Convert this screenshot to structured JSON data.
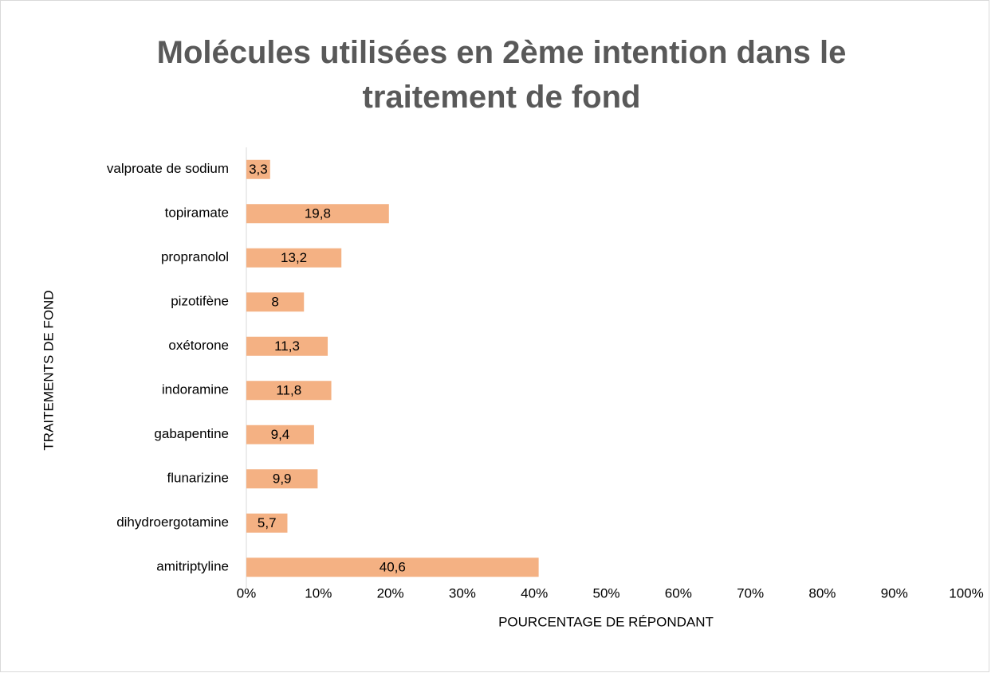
{
  "chart_data": {
    "type": "bar",
    "orientation": "horizontal",
    "title": "Molécules utilisées en 2ème intention dans le traitement de fond",
    "xlabel": "POURCENTAGE DE RÉPONDANT",
    "ylabel": "TRAITEMENTS DE FOND",
    "categories": [
      "valproate de sodium",
      "topiramate",
      "propranolol",
      "pizotifène",
      "oxétorone",
      "indoramine",
      "gabapentine",
      "flunarizine",
      "dihydroergotamine",
      "amitriptyline"
    ],
    "values": [
      3.3,
      19.8,
      13.2,
      8,
      11.3,
      11.8,
      9.4,
      9.9,
      5.7,
      40.6
    ],
    "value_labels": [
      "3,3",
      "19,8",
      "13,2",
      "8",
      "11,3",
      "11,8",
      "9,4",
      "9,9",
      "5,7",
      "40,6"
    ],
    "color": "#f4b183",
    "xlim": [
      0,
      100
    ],
    "xticks": [
      {
        "value": 0,
        "label": "0%"
      },
      {
        "value": 10,
        "label": "10%"
      },
      {
        "value": 20,
        "label": "20%"
      },
      {
        "value": 30,
        "label": "30%"
      },
      {
        "value": 40,
        "label": "40%"
      },
      {
        "value": 50,
        "label": "50%"
      },
      {
        "value": 60,
        "label": "60%"
      },
      {
        "value": 70,
        "label": "70%"
      },
      {
        "value": 80,
        "label": "80%"
      },
      {
        "value": 90,
        "label": "90%"
      },
      {
        "value": 100,
        "label": "100%"
      }
    ],
    "grid": false
  }
}
